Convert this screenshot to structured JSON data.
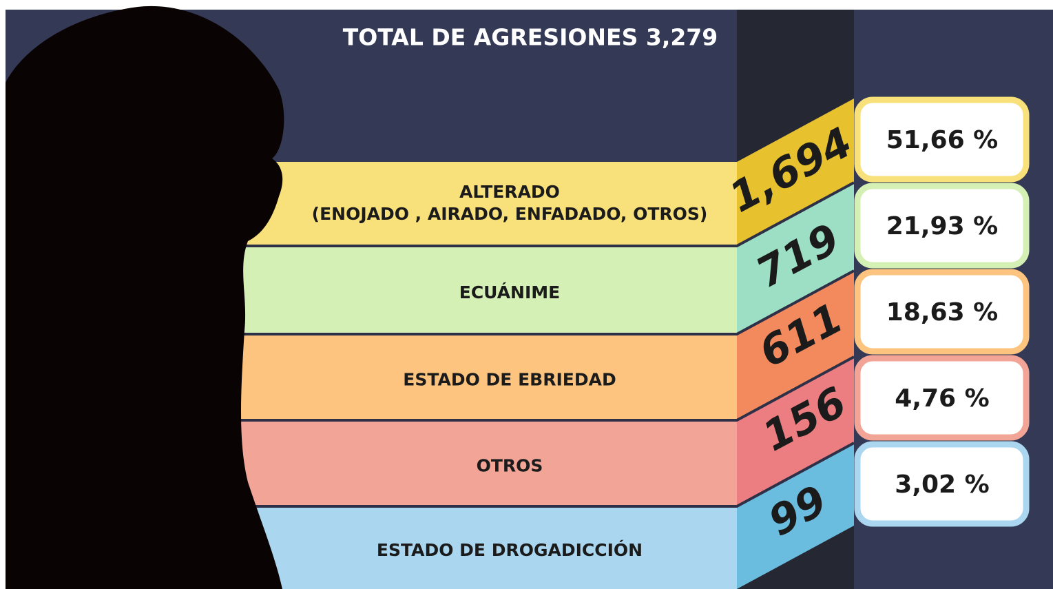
{
  "title": "TOTAL DE AGRESIONES  3,279",
  "rows": [
    {
      "label": [
        "ALTERADO",
        "(ENOJADO , AIRADO, ENFADADO, OTROS)"
      ],
      "count": "1,694",
      "percent": "51,66 %"
    },
    {
      "label": [
        "ECUÁNIME"
      ],
      "count": "719",
      "percent": "21,93 %"
    },
    {
      "label": [
        "ESTADO DE EBRIEDAD"
      ],
      "count": "611",
      "percent": "18,63 %"
    },
    {
      "label": [
        "OTROS"
      ],
      "count": "156",
      "percent": "4,76 %"
    },
    {
      "label": [
        "ESTADO DE DROGADICCIÓN"
      ],
      "count": "99",
      "percent": "3,02 %"
    }
  ]
}
